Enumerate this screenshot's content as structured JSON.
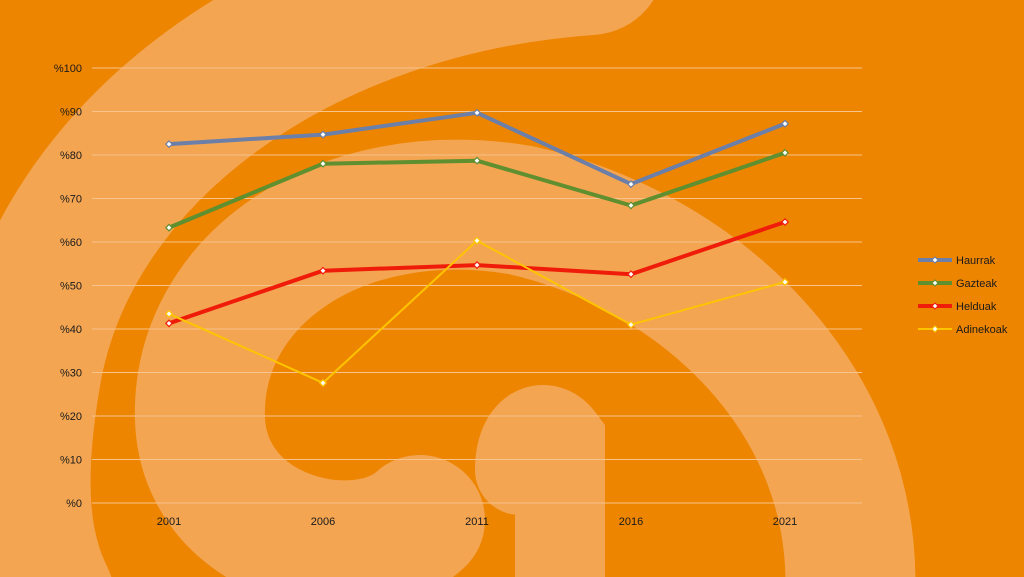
{
  "chart_data": {
    "type": "line",
    "title": "",
    "xlabel": "",
    "ylabel": "",
    "categories": [
      "2001",
      "2006",
      "2011",
      "2016",
      "2021"
    ],
    "ylim": [
      0,
      100
    ],
    "yticks": [
      0,
      10,
      20,
      30,
      40,
      50,
      60,
      70,
      80,
      90,
      100
    ],
    "ytick_labels": [
      "%0",
      "%10",
      "%20",
      "%30",
      "%40",
      "%50",
      "%60",
      "%70",
      "%80",
      "%90",
      "%100"
    ],
    "grid": true,
    "legend_position": "right",
    "series": [
      {
        "name": "Haurrak",
        "color": "#6b7fa8",
        "values": [
          82.5,
          84.7,
          89.7,
          73.3,
          87.2
        ]
      },
      {
        "name": "Gazteak",
        "color": "#5f8f2e",
        "values": [
          63.3,
          78.0,
          78.7,
          68.4,
          80.5
        ]
      },
      {
        "name": "Helduak",
        "color": "#f01c0a",
        "values": [
          41.3,
          53.4,
          54.7,
          52.6,
          64.6
        ]
      },
      {
        "name": "Adinekoak",
        "color": "#ffc400",
        "values": [
          43.5,
          27.6,
          60.3,
          41.0,
          50.8
        ]
      }
    ]
  }
}
